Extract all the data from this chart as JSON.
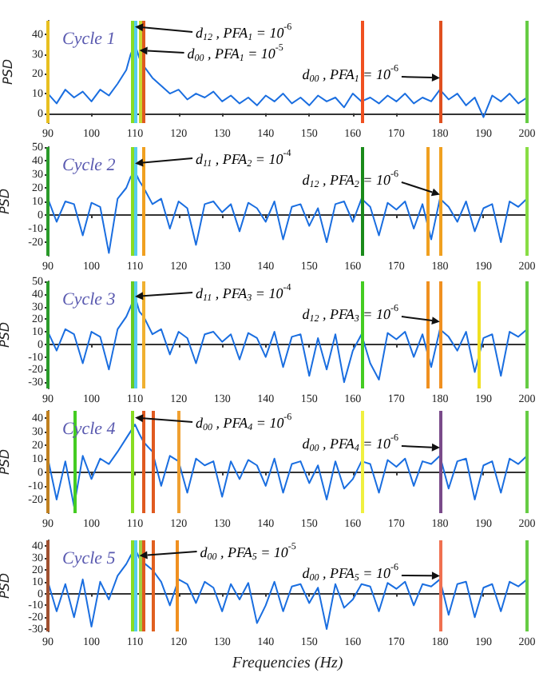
{
  "chart_data": [
    {
      "type": "line",
      "title": "Cycle 1",
      "ylabel": "PSD",
      "color": "#1a6ee0",
      "xlim": [
        90,
        200
      ],
      "xticks": [
        90,
        100,
        110,
        120,
        130,
        140,
        150,
        160,
        170,
        180,
        190,
        200
      ],
      "ylim": [
        -5,
        47
      ],
      "yticks": [
        0,
        10,
        20,
        30,
        40
      ],
      "x": [
        90,
        92,
        94,
        96,
        98,
        100,
        102,
        104,
        106,
        108,
        109,
        110,
        111,
        112,
        114,
        116,
        118,
        120,
        122,
        124,
        126,
        128,
        130,
        132,
        134,
        136,
        138,
        140,
        142,
        144,
        146,
        148,
        150,
        152,
        154,
        156,
        158,
        160,
        162,
        164,
        166,
        168,
        170,
        172,
        174,
        176,
        178,
        180,
        182,
        184,
        186,
        188,
        190,
        192,
        194,
        196,
        198,
        200
      ],
      "values": [
        10,
        5,
        12,
        8,
        11,
        6,
        12,
        9,
        15,
        22,
        30,
        35,
        28,
        24,
        18,
        14,
        10,
        12,
        7,
        10,
        8,
        11,
        6,
        9,
        5,
        8,
        4,
        9,
        6,
        10,
        5,
        8,
        4,
        9,
        6,
        8,
        3,
        10,
        6,
        8,
        5,
        9,
        6,
        10,
        5,
        8,
        6,
        12,
        7,
        10,
        4,
        8,
        -2,
        9,
        6,
        10,
        5,
        8
      ],
      "ref_lines": [
        {
          "axis": "x",
          "value": 90,
          "color": "#e8c020"
        },
        {
          "axis": "x",
          "value": 109.5,
          "color": "#88dd22"
        },
        {
          "axis": "x",
          "value": 110,
          "color": "#55ccee"
        },
        {
          "axis": "x",
          "value": 111,
          "color": "#c8d830"
        },
        {
          "axis": "x",
          "value": 112,
          "color": "#e05a20"
        },
        {
          "axis": "x",
          "value": 162,
          "color": "#f05020"
        },
        {
          "axis": "x",
          "value": 180,
          "color": "#e05020"
        },
        {
          "axis": "x",
          "value": 200,
          "color": "#66cc44"
        }
      ],
      "annotations": [
        {
          "text": "d$_{12}$ , PFA$_{1}$ = 10$^{-6}$",
          "x": 110,
          "y": 44
        },
        {
          "text": "d$_{00}$ , PFA$_{1}$ = 10$^{-5}$",
          "x": 111,
          "y": 32
        },
        {
          "text": "d$_{00}$ , PFA$_{1}$ = 10$^{-6}$",
          "x": 180,
          "y": 18
        }
      ]
    },
    {
      "type": "line",
      "title": "Cycle 2",
      "ylabel": "PSD",
      "color": "#1a6ee0",
      "xlim": [
        90,
        200
      ],
      "xticks": [
        90,
        100,
        110,
        120,
        130,
        140,
        150,
        160,
        170,
        180,
        190,
        200
      ],
      "ylim": [
        -30,
        50
      ],
      "yticks": [
        -20,
        -10,
        0,
        10,
        20,
        30,
        40,
        50
      ],
      "x": [
        90,
        92,
        94,
        96,
        98,
        100,
        102,
        104,
        106,
        108,
        109,
        110,
        111,
        112,
        114,
        116,
        118,
        120,
        122,
        124,
        126,
        128,
        130,
        132,
        134,
        136,
        138,
        140,
        142,
        144,
        146,
        148,
        150,
        152,
        154,
        156,
        158,
        160,
        162,
        164,
        166,
        168,
        170,
        172,
        174,
        176,
        178,
        180,
        182,
        184,
        186,
        188,
        190,
        192,
        194,
        196,
        198,
        200
      ],
      "values": [
        12,
        -5,
        10,
        8,
        -15,
        9,
        6,
        -28,
        12,
        20,
        28,
        32,
        25,
        20,
        8,
        12,
        -10,
        10,
        5,
        -22,
        8,
        10,
        2,
        8,
        -12,
        9,
        5,
        -5,
        10,
        -18,
        6,
        8,
        -8,
        5,
        -20,
        8,
        10,
        -5,
        12,
        6,
        -15,
        9,
        4,
        10,
        -10,
        8,
        -18,
        12,
        6,
        -5,
        10,
        -12,
        5,
        8,
        -20,
        10,
        6,
        12
      ],
      "ref_lines": [
        {
          "axis": "x",
          "value": 90,
          "color": "#2a9a2a"
        },
        {
          "axis": "x",
          "value": 109.5,
          "color": "#88dd22"
        },
        {
          "axis": "x",
          "value": 110,
          "color": "#55ccee"
        },
        {
          "axis": "x",
          "value": 112,
          "color": "#f0a020"
        },
        {
          "axis": "x",
          "value": 162,
          "color": "#1a8a1a"
        },
        {
          "axis": "x",
          "value": 177,
          "color": "#f0a020"
        },
        {
          "axis": "x",
          "value": 180,
          "color": "#f0a020"
        },
        {
          "axis": "x",
          "value": 200,
          "color": "#88dd44"
        }
      ],
      "annotations": [
        {
          "text": "d$_{11}$ , PFA$_{2}$ = 10$^{-4}$",
          "x": 110,
          "y": 38
        },
        {
          "text": "d$_{12}$ , PFA$_{2}$ = 10$^{-6}$",
          "x": 180,
          "y": 15
        }
      ]
    },
    {
      "type": "line",
      "title": "Cycle 3",
      "ylabel": "PSD",
      "color": "#1a6ee0",
      "xlim": [
        90,
        200
      ],
      "xticks": [
        90,
        100,
        110,
        120,
        130,
        140,
        150,
        160,
        170,
        180,
        190,
        200
      ],
      "ylim": [
        -35,
        50
      ],
      "yticks": [
        -30,
        -20,
        -10,
        0,
        10,
        20,
        30,
        40,
        50
      ],
      "x": [
        90,
        92,
        94,
        96,
        98,
        100,
        102,
        104,
        106,
        108,
        109,
        110,
        111,
        112,
        114,
        116,
        118,
        120,
        122,
        124,
        126,
        128,
        130,
        132,
        134,
        136,
        138,
        140,
        142,
        144,
        146,
        148,
        150,
        152,
        154,
        156,
        158,
        160,
        162,
        164,
        166,
        168,
        170,
        172,
        174,
        176,
        178,
        180,
        182,
        184,
        186,
        188,
        190,
        192,
        194,
        196,
        198,
        200
      ],
      "values": [
        10,
        -5,
        12,
        8,
        -15,
        10,
        6,
        -20,
        12,
        22,
        30,
        38,
        26,
        22,
        8,
        12,
        -8,
        10,
        5,
        -15,
        8,
        10,
        2,
        8,
        -12,
        9,
        5,
        -10,
        10,
        -18,
        6,
        8,
        -25,
        5,
        -20,
        8,
        -30,
        -5,
        8,
        -15,
        -28,
        9,
        4,
        10,
        -10,
        8,
        -18,
        12,
        6,
        -5,
        10,
        -22,
        5,
        8,
        -25,
        10,
        6,
        12
      ],
      "ref_lines": [
        {
          "axis": "x",
          "value": 90,
          "color": "#2a9a2a"
        },
        {
          "axis": "x",
          "value": 109.5,
          "color": "#66cc22"
        },
        {
          "axis": "x",
          "value": 110,
          "color": "#55ccee"
        },
        {
          "axis": "x",
          "value": 112,
          "color": "#f0b030"
        },
        {
          "axis": "x",
          "value": 162,
          "color": "#44cc22"
        },
        {
          "axis": "x",
          "value": 177,
          "color": "#f09020"
        },
        {
          "axis": "x",
          "value": 180,
          "color": "#f09020"
        },
        {
          "axis": "x",
          "value": 189,
          "color": "#f0e020"
        },
        {
          "axis": "x",
          "value": 200,
          "color": "#66cc44"
        }
      ],
      "annotations": [
        {
          "text": "d$_{11}$ , PFA$_{3}$ = 10$^{-4}$",
          "x": 110,
          "y": 38
        },
        {
          "text": "d$_{12}$ , PFA$_{3}$ = 10$^{-6}$",
          "x": 180,
          "y": 18
        }
      ]
    },
    {
      "type": "line",
      "title": "Cycle 4",
      "ylabel": "PSD",
      "color": "#1a6ee0",
      "xlim": [
        90,
        200
      ],
      "xticks": [
        90,
        100,
        110,
        120,
        130,
        140,
        150,
        160,
        170,
        180,
        190,
        200
      ],
      "ylim": [
        -30,
        45
      ],
      "yticks": [
        -20,
        -10,
        0,
        10,
        20,
        30,
        40
      ],
      "x": [
        90,
        92,
        94,
        96,
        98,
        100,
        102,
        104,
        106,
        108,
        109,
        110,
        111,
        112,
        114,
        116,
        118,
        120,
        122,
        124,
        126,
        128,
        130,
        132,
        134,
        136,
        138,
        140,
        142,
        144,
        146,
        148,
        150,
        152,
        154,
        156,
        158,
        160,
        162,
        164,
        166,
        168,
        170,
        172,
        174,
        176,
        178,
        180,
        182,
        184,
        186,
        188,
        190,
        192,
        194,
        196,
        198,
        200
      ],
      "values": [
        10,
        -20,
        8,
        -25,
        12,
        -5,
        10,
        6,
        15,
        25,
        30,
        35,
        28,
        22,
        15,
        -10,
        12,
        8,
        -15,
        10,
        5,
        8,
        -18,
        8,
        -5,
        9,
        5,
        -10,
        10,
        -15,
        6,
        8,
        -8,
        5,
        -20,
        8,
        -12,
        -5,
        8,
        6,
        -15,
        9,
        4,
        10,
        -10,
        8,
        6,
        12,
        -12,
        8,
        10,
        -20,
        5,
        8,
        -15,
        10,
        6,
        12
      ],
      "ref_lines": [
        {
          "axis": "x",
          "value": 90,
          "color": "#c08020"
        },
        {
          "axis": "x",
          "value": 96,
          "color": "#44cc22"
        },
        {
          "axis": "x",
          "value": 109.5,
          "color": "#88dd22"
        },
        {
          "axis": "x",
          "value": 112,
          "color": "#e05a20"
        },
        {
          "axis": "x",
          "value": 114,
          "color": "#e05a20"
        },
        {
          "axis": "x",
          "value": 120,
          "color": "#f0a030"
        },
        {
          "axis": "x",
          "value": 162,
          "color": "#f0f040"
        },
        {
          "axis": "x",
          "value": 180,
          "color": "#7a4a8a"
        },
        {
          "axis": "x",
          "value": 200,
          "color": "#66cc44"
        }
      ],
      "annotations": [
        {
          "text": "d$_{00}$ , PFA$_{4}$ = 10$^{-6}$",
          "x": 110,
          "y": 40
        },
        {
          "text": "d$_{00}$ , PFA$_{4}$ = 10$^{-6}$",
          "x": 180,
          "y": 18
        }
      ]
    },
    {
      "type": "line",
      "title": "Cycle 5",
      "xlabel": "Frequencies (Hz)",
      "ylabel": "PSD",
      "color": "#1a6ee0",
      "xlim": [
        90,
        200
      ],
      "xticks": [
        90,
        100,
        110,
        120,
        130,
        140,
        150,
        160,
        170,
        180,
        190,
        200
      ],
      "ylim": [
        -32,
        45
      ],
      "yticks": [
        -30,
        -20,
        -10,
        0,
        10,
        20,
        30,
        40
      ],
      "x": [
        90,
        92,
        94,
        96,
        98,
        100,
        102,
        104,
        106,
        108,
        109,
        110,
        111,
        112,
        114,
        116,
        118,
        120,
        122,
        124,
        126,
        128,
        130,
        132,
        134,
        136,
        138,
        140,
        142,
        144,
        146,
        148,
        150,
        152,
        154,
        156,
        158,
        160,
        162,
        164,
        166,
        168,
        170,
        172,
        174,
        176,
        178,
        180,
        182,
        184,
        186,
        188,
        190,
        192,
        194,
        196,
        198,
        200
      ],
      "values": [
        10,
        -15,
        8,
        -20,
        12,
        -28,
        10,
        -5,
        15,
        25,
        32,
        38,
        30,
        26,
        20,
        10,
        -10,
        12,
        8,
        -8,
        10,
        5,
        -15,
        8,
        -5,
        9,
        -25,
        -10,
        10,
        -15,
        6,
        8,
        -8,
        5,
        -30,
        8,
        -12,
        -5,
        8,
        6,
        -15,
        9,
        4,
        10,
        -10,
        8,
        6,
        12,
        -18,
        8,
        10,
        -20,
        5,
        8,
        -15,
        10,
        6,
        12
      ],
      "ref_lines": [
        {
          "axis": "x",
          "value": 90,
          "color": "#a05030"
        },
        {
          "axis": "x",
          "value": 109.5,
          "color": "#88dd22"
        },
        {
          "axis": "x",
          "value": 110,
          "color": "#55ccee"
        },
        {
          "axis": "x",
          "value": 111,
          "color": "#a0d040"
        },
        {
          "axis": "x",
          "value": 112,
          "color": "#e05a20"
        },
        {
          "axis": "x",
          "value": 114,
          "color": "#e06020"
        },
        {
          "axis": "x",
          "value": 119.5,
          "color": "#f09020"
        },
        {
          "axis": "x",
          "value": 180,
          "color": "#f07050"
        },
        {
          "axis": "x",
          "value": 200,
          "color": "#66cc44"
        }
      ],
      "annotations": [
        {
          "text": "d$_{00}$ , PFA$_{5}$ = 10$^{-5}$",
          "x": 111,
          "y": 32
        },
        {
          "text": "d$_{00}$ , PFA$_{5}$ = 10$^{-6}$",
          "x": 180,
          "y": 15
        }
      ]
    }
  ]
}
